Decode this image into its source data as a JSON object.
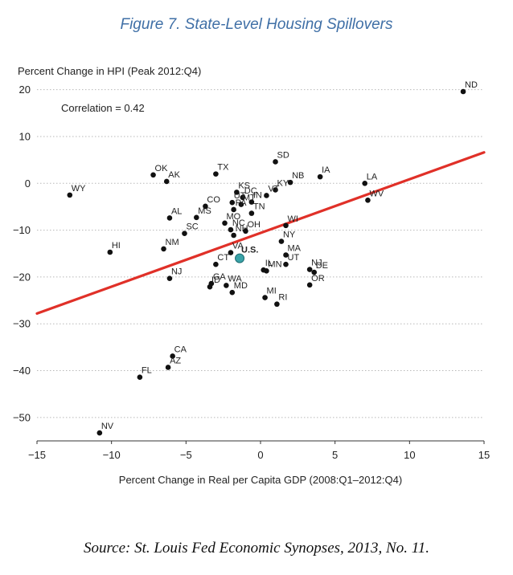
{
  "figure_title": "Figure 7. State-Level Housing Spillovers",
  "source_text": "Source: St. Louis Fed Economic Synopses, 2013, No. 11.",
  "chart_data": {
    "type": "scatter",
    "title": "Figure 7. State-Level Housing Spillovers",
    "xlabel": "Percent Change in Real per Capita GDP (2008:Q1–2012:Q4)",
    "ylabel": "Percent Change in HPI (Peak 2012:Q4)",
    "annotation": "Correlation = 0.42",
    "xlim": [
      -15,
      15
    ],
    "ylim": [
      -55,
      22
    ],
    "xticks": [
      -15,
      -10,
      -5,
      0,
      5,
      10,
      15
    ],
    "xtick_labels": [
      "−15",
      "−10",
      "−5",
      "0",
      "5",
      "10",
      "15"
    ],
    "yticks": [
      -50,
      -40,
      -30,
      -20,
      -10,
      0,
      10,
      20
    ],
    "ytick_labels": [
      "−50",
      "−40",
      "−30",
      "−20",
      "−10",
      "0",
      "10",
      "20"
    ],
    "grid": "horizontal dotted",
    "fit_line": {
      "x1": -15,
      "y1": -27.8,
      "x2": 15,
      "y2": 6.6,
      "color": "#e03028"
    },
    "point_color": "#111111",
    "highlight_color": "#3aa3a8",
    "points": [
      {
        "label": "ND",
        "x": 13.6,
        "y": 19.6
      },
      {
        "label": "SD",
        "x": 1.0,
        "y": 4.6
      },
      {
        "label": "TX",
        "x": -3.0,
        "y": 2.0
      },
      {
        "label": "OK",
        "x": -7.2,
        "y": 1.8
      },
      {
        "label": "AK",
        "x": -6.3,
        "y": 0.4
      },
      {
        "label": "IA",
        "x": 4.0,
        "y": 1.4
      },
      {
        "label": "NB",
        "x": 2.0,
        "y": 0.2
      },
      {
        "label": "LA",
        "x": 7.0,
        "y": 0.0
      },
      {
        "label": "KY",
        "x": 1.0,
        "y": -1.4
      },
      {
        "label": "KS",
        "x": -1.6,
        "y": -1.9
      },
      {
        "label": "WY",
        "x": -12.8,
        "y": -2.5
      },
      {
        "label": "WV",
        "x": 7.2,
        "y": -3.6
      },
      {
        "label": "VT",
        "x": 0.4,
        "y": -2.6
      },
      {
        "label": "DC",
        "x": -1.2,
        "y": -3.0
      },
      {
        "label": "CO",
        "x": -3.7,
        "y": -4.9
      },
      {
        "label": "IN",
        "x": -0.6,
        "y": -4.0
      },
      {
        "label": "UT",
        "x": -1.9,
        "y": -4.1
      },
      {
        "label": "MT",
        "x": -1.3,
        "y": -4.5
      },
      {
        "label": "PA",
        "x": -1.8,
        "y": -5.6
      },
      {
        "label": "TN",
        "x": -0.6,
        "y": -6.4
      },
      {
        "label": "AL",
        "x": -6.1,
        "y": -7.4
      },
      {
        "label": "MS",
        "x": -4.3,
        "y": -7.3
      },
      {
        "label": "MO",
        "x": -2.4,
        "y": -8.5
      },
      {
        "label": "WI",
        "x": 1.7,
        "y": -9.0
      },
      {
        "label": "SC",
        "x": -5.1,
        "y": -10.7
      },
      {
        "label": "NC",
        "x": -2.0,
        "y": -9.9
      },
      {
        "label": "NH",
        "x": -1.8,
        "y": -11.1
      },
      {
        "label": "OH",
        "x": -1.0,
        "y": -10.2
      },
      {
        "label": "NY",
        "x": 1.4,
        "y": -12.4
      },
      {
        "label": "NM",
        "x": -6.5,
        "y": -14.0
      },
      {
        "label": "HI",
        "x": -10.1,
        "y": -14.7
      },
      {
        "label": "VA",
        "x": -2.0,
        "y": -14.8
      },
      {
        "label": "MA",
        "x": 1.7,
        "y": -15.3
      },
      {
        "label": "CT",
        "x": -3.0,
        "y": -17.3
      },
      {
        "label": "IL",
        "x": 0.2,
        "y": -18.5
      },
      {
        "label": "MN",
        "x": 0.4,
        "y": -18.7
      },
      {
        "label": "UT",
        "x": 1.7,
        "y": -17.3
      },
      {
        "label": "NJ",
        "x": 3.3,
        "y": -18.4
      },
      {
        "label": "DE",
        "x": 3.6,
        "y": -19.0
      },
      {
        "label": "NJ",
        "x": -6.1,
        "y": -20.3
      },
      {
        "label": "GA",
        "x": -3.3,
        "y": -21.4
      },
      {
        "label": "ID",
        "x": -3.4,
        "y": -22.1
      },
      {
        "label": "WA",
        "x": -2.3,
        "y": -21.8
      },
      {
        "label": "OR",
        "x": 3.3,
        "y": -21.7
      },
      {
        "label": "MD",
        "x": -1.9,
        "y": -23.3
      },
      {
        "label": "MI",
        "x": 0.3,
        "y": -24.4
      },
      {
        "label": "RI",
        "x": 1.1,
        "y": -25.8
      },
      {
        "label": "CA",
        "x": -5.9,
        "y": -36.9
      },
      {
        "label": "AZ",
        "x": -6.2,
        "y": -39.3
      },
      {
        "label": "FL",
        "x": -8.1,
        "y": -41.4
      },
      {
        "label": "NV",
        "x": -10.8,
        "y": -53.3
      },
      {
        "label": "U.S.",
        "x": -1.4,
        "y": -16.0,
        "highlight": true
      }
    ]
  }
}
